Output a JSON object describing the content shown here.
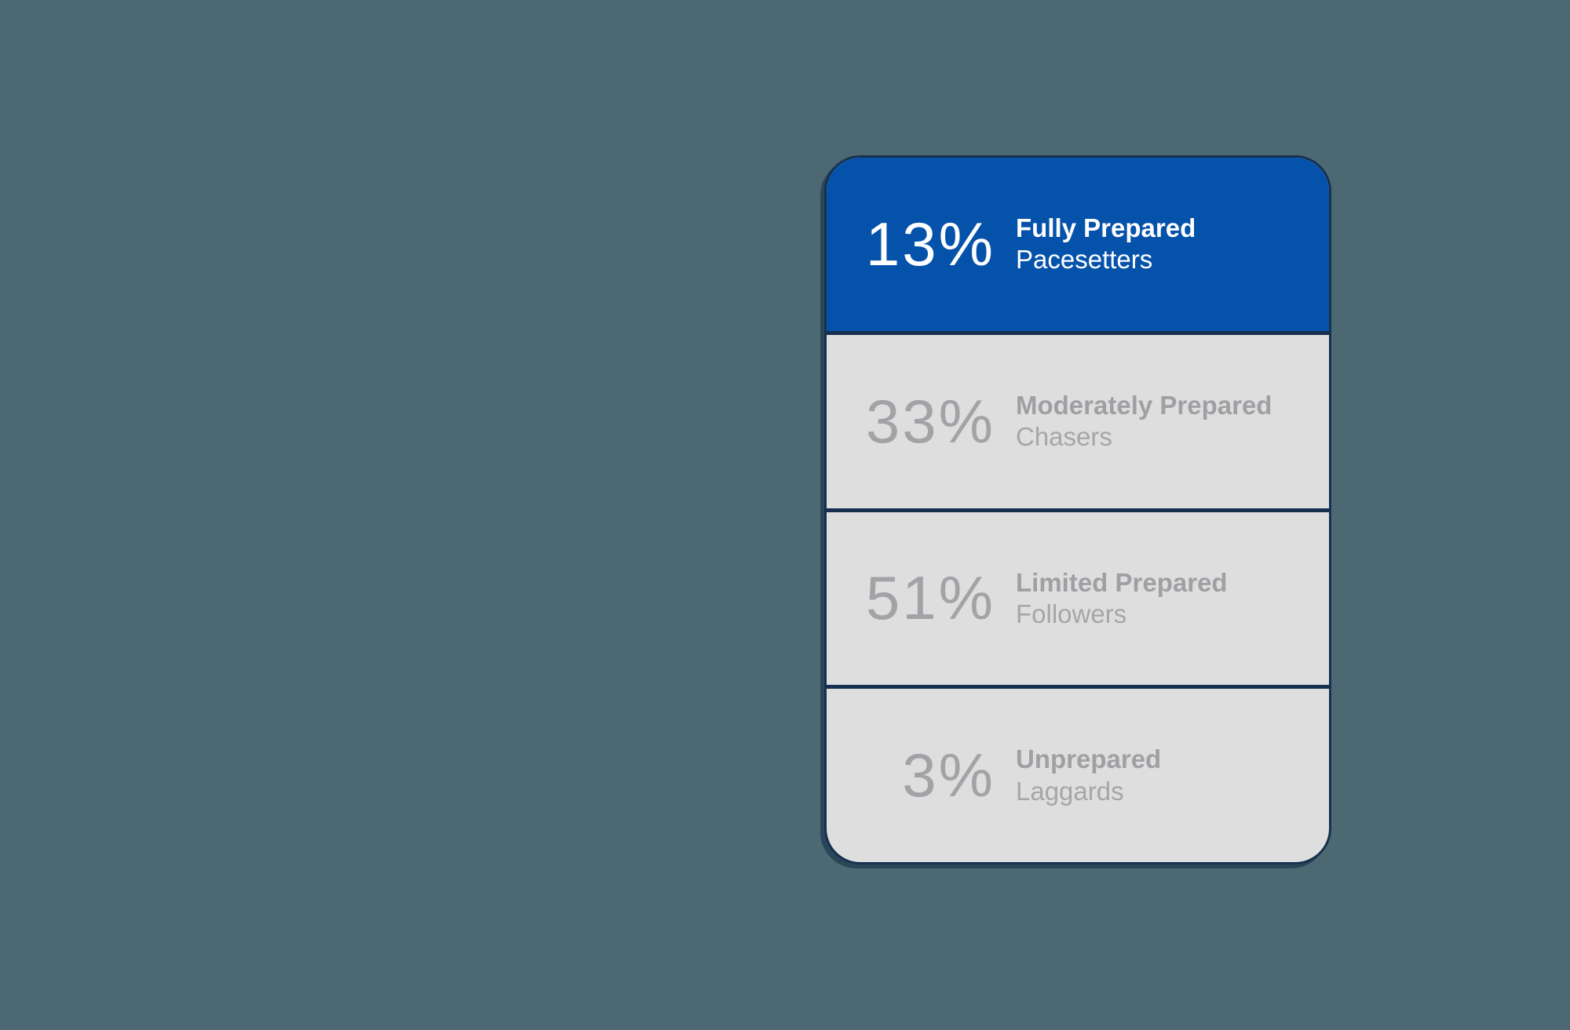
{
  "colors": {
    "page_background": "#4C6872",
    "card_background": "#DEDEDE",
    "card_border": "#16314F",
    "divider": "#16314F",
    "highlight_blue": "#0552AB",
    "highlight_text": "#FFFFFF",
    "muted_number": "#A3A3A7",
    "muted_title": "#A0A0A4",
    "muted_subtitle": "#A6A6AA"
  },
  "card": {
    "sections": [
      {
        "percent": "13%",
        "title": "Fully Prepared",
        "subtitle": "Pacesetters",
        "highlighted": true
      },
      {
        "percent": "33%",
        "title": "Moderately Prepared",
        "subtitle": "Chasers",
        "highlighted": false
      },
      {
        "percent": "51%",
        "title": "Limited Prepared",
        "subtitle": "Followers",
        "highlighted": false
      },
      {
        "percent": "3%",
        "title": "Unprepared",
        "subtitle": "Laggards",
        "highlighted": false
      }
    ]
  },
  "chart_data": {
    "type": "bar",
    "categories": [
      "Pacesetters",
      "Chasers",
      "Followers",
      "Laggards"
    ],
    "category_titles": [
      "Fully Prepared",
      "Moderately Prepared",
      "Limited Prepared",
      "Unprepared"
    ],
    "values": [
      13,
      33,
      51,
      3
    ],
    "unit": "%",
    "title": "",
    "xlabel": "",
    "ylabel": "",
    "ylim": [
      0,
      100
    ],
    "legend_position": "none",
    "grid": false,
    "highlighted_category": "Pacesetters"
  }
}
